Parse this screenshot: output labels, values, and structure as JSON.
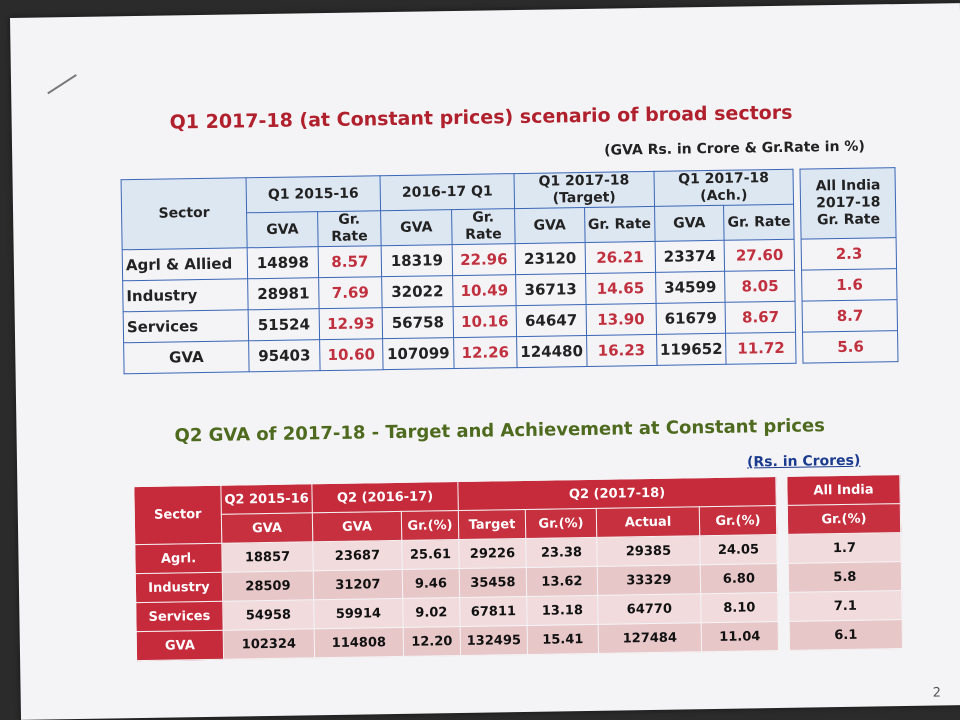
{
  "section1": {
    "title": "Q1 2017-18 (at Constant prices) scenario of broad sectors",
    "unit_note": "(GVA Rs. in Crore & Gr.Rate in %)",
    "headers": {
      "sector": "Sector",
      "groups": [
        "Q1 2015-16",
        "2016-17 Q1",
        "Q1 2017-18 (Target)",
        "Q1 2017-18 (Ach.)"
      ],
      "gva": "GVA",
      "gr_rate": "Gr. Rate",
      "all_india": "All India 2017-18 Gr. Rate"
    },
    "rows": [
      {
        "sector": "Agrl & Allied",
        "values": [
          "14898",
          "8.57",
          "18319",
          "22.96",
          "23120",
          "26.21",
          "23374",
          "27.60"
        ],
        "all_india": "2.3"
      },
      {
        "sector": "Industry",
        "values": [
          "28981",
          "7.69",
          "32022",
          "10.49",
          "36713",
          "14.65",
          "34599",
          "8.05"
        ],
        "all_india": "1.6"
      },
      {
        "sector": "Services",
        "values": [
          "51524",
          "12.93",
          "56758",
          "10.16",
          "64647",
          "13.90",
          "61679",
          "8.67"
        ],
        "all_india": "8.7"
      },
      {
        "sector": "GVA",
        "values": [
          "95403",
          "10.60",
          "107099",
          "12.26",
          "124480",
          "16.23",
          "119652",
          "11.72"
        ],
        "all_india": "5.6"
      }
    ]
  },
  "section2": {
    "title": "Q2 GVA of 2017-18 - Target and Achievement at Constant prices",
    "unit_note": "(Rs. in Crores)",
    "headers": {
      "sector": "Sector",
      "groups": [
        "Q2 2015-16",
        "Q2 (2016-17)",
        "Q2 (2017-18)"
      ],
      "all_india": "All India",
      "sub": [
        "GVA",
        "GVA",
        "Gr.(%)",
        "Target",
        "Gr.(%)",
        "Actual",
        "Gr.(%)"
      ],
      "all_india_sub": "Gr.(%)"
    },
    "rows": [
      {
        "sector": "Agrl.",
        "values": [
          "18857",
          "23687",
          "25.61",
          "29226",
          "23.38",
          "29385",
          "24.05"
        ],
        "all_india": "1.7"
      },
      {
        "sector": "Industry",
        "values": [
          "28509",
          "31207",
          "9.46",
          "35458",
          "13.62",
          "33329",
          "6.80"
        ],
        "all_india": "5.8"
      },
      {
        "sector": "Services",
        "values": [
          "54958",
          "59914",
          "9.02",
          "67811",
          "13.18",
          "64770",
          "8.10"
        ],
        "all_india": "7.1"
      },
      {
        "sector": "GVA",
        "values": [
          "102324",
          "114808",
          "12.20",
          "132495",
          "15.41",
          "127484",
          "11.04"
        ],
        "all_india": "6.1"
      }
    ]
  },
  "page_number": "2"
}
